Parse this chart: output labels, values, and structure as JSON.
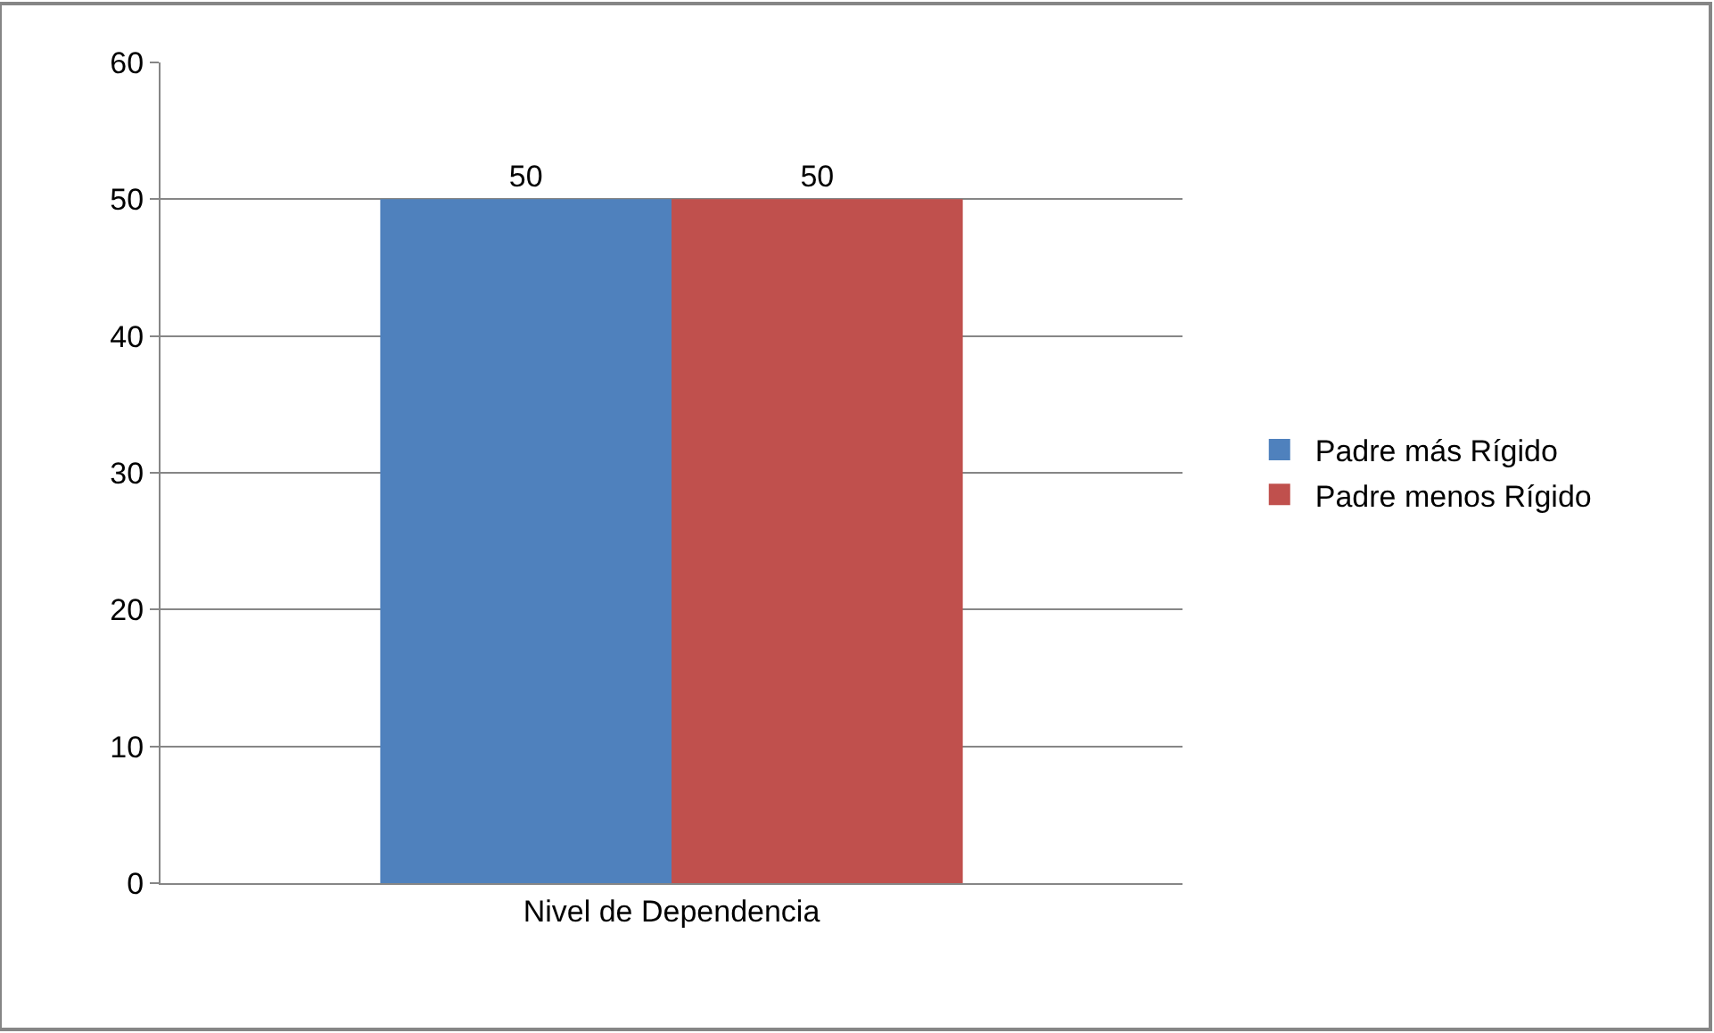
{
  "chart_data": {
    "type": "bar",
    "categories": [
      "Nivel de Dependencia"
    ],
    "series": [
      {
        "name": "Padre más Rígido",
        "color": "#4f81bd",
        "values": [
          50
        ]
      },
      {
        "name": "Padre menos Rígido",
        "color": "#c0504d",
        "values": [
          50
        ]
      }
    ],
    "ylim": [
      0,
      60
    ],
    "yticks": [
      0,
      10,
      20,
      30,
      40,
      50,
      60
    ],
    "grid": "y",
    "legend": "right",
    "data_labels": true
  }
}
